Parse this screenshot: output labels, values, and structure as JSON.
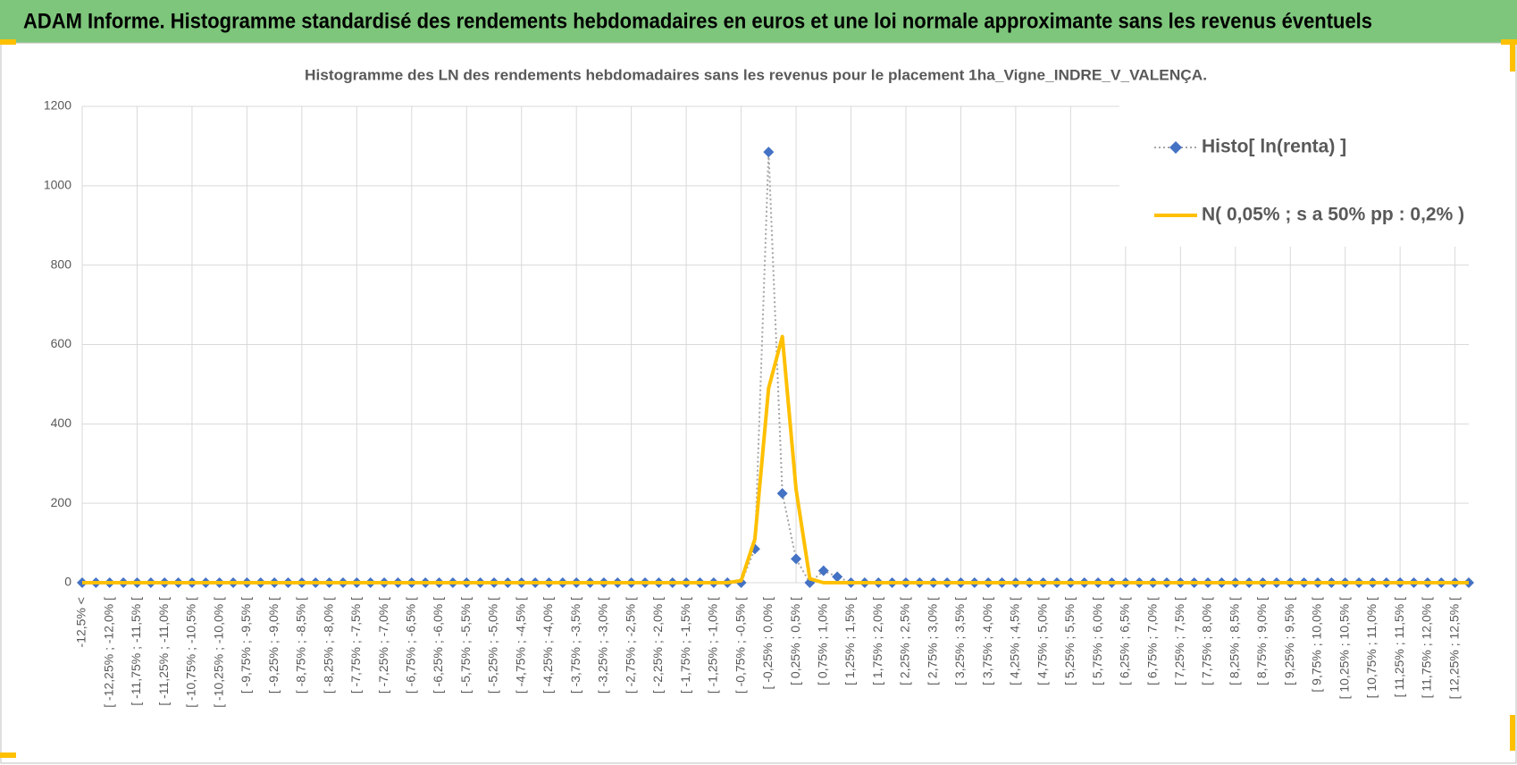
{
  "header": {
    "title": "ADAM Informe. Histogramme standardisé des rendements hebdomadaires en euros et une loi normale approximante sans les revenus éventuels"
  },
  "chart_data": {
    "type": "line",
    "title": "Histogramme des LN des rendements hebdomadaires sans les revenus pour le placement 1ha_Vigne_INDRE_V_VALENÇA.",
    "categories": [
      "-12,5% <",
      null,
      "[ -12,25% ; -12,0% [",
      null,
      "[ -11,75% ; -11,5% [",
      null,
      "[ -11,25% ; -11,0% [",
      null,
      "[ -10,75% ; -10,5% [",
      null,
      "[ -10,25% ; -10,0% [",
      null,
      "[ -9,75% ; -9,5% [",
      null,
      "[ -9,25% ; -9,0% [",
      null,
      "[ -8,75% ; -8,5% [",
      null,
      "[ -8,25% ; -8,0% [",
      null,
      "[ -7,75% ; -7,5% [",
      null,
      "[ -7,25% ; -7,0% [",
      null,
      "[ -6,75% ; -6,5% [",
      null,
      "[ -6,25% ; -6,0% [",
      null,
      "[ -5,75% ; -5,5% [",
      null,
      "[ -5,25% ; -5,0% [",
      null,
      "[ -4,75% ; -4,5% [",
      null,
      "[ -4,25% ; -4,0% [",
      null,
      "[ -3,75% ; -3,5% [",
      null,
      "[ -3,25% ; -3,0% [",
      null,
      "[ -2,75% ; -2,5% [",
      null,
      "[ -2,25% ; -2,0% [",
      null,
      "[ -1,75% ; -1,5% [",
      null,
      "[ -1,25% ; -1,0% [",
      null,
      "[ -0,75% ; -0,5% [",
      null,
      "[ -0,25% ; 0,0% [",
      null,
      "[ 0,25% ; 0,5% [",
      null,
      "[ 0,75% ; 1,0% [",
      null,
      "[ 1,25% ; 1,5% [",
      null,
      "[ 1,75% ; 2,0% [",
      null,
      "[ 2,25% ; 2,5% [",
      null,
      "[ 2,75% ; 3,0% [",
      null,
      "[ 3,25% ; 3,5% [",
      null,
      "[ 3,75% ; 4,0% [",
      null,
      "[ 4,25% ; 4,5% [",
      null,
      "[ 4,75% ; 5,0% [",
      null,
      "[ 5,25% ; 5,5% [",
      null,
      "[ 5,75% ; 6,0% [",
      null,
      "[ 6,25% ; 6,5% [",
      null,
      "[ 6,75% ; 7,0% [",
      null,
      "[ 7,25% ; 7,5% [",
      null,
      "[ 7,75% ; 8,0% [",
      null,
      "[ 8,25% ; 8,5% [",
      null,
      "[ 8,75% ; 9,0% [",
      null,
      "[ 9,25% ; 9,5% [",
      null,
      "[ 9,75% ; 10,0% [",
      null,
      "[ 10,25% ; 10,5% [",
      null,
      "[ 10,75% ; 11,0% [",
      null,
      "[ 11,25% ; 11,5% [",
      null,
      "[ 11,75% ; 12,0% [",
      null,
      "[ 12,25% ; 12,5% [",
      null
    ],
    "series": [
      {
        "name": "Histo[ ln(renta) ]",
        "color": "#4472c4",
        "line_color": "#a5a5a5",
        "values": [
          0,
          0,
          0,
          0,
          0,
          0,
          0,
          0,
          0,
          0,
          0,
          0,
          0,
          0,
          0,
          0,
          0,
          0,
          0,
          0,
          0,
          0,
          0,
          0,
          0,
          0,
          0,
          0,
          0,
          0,
          0,
          0,
          0,
          0,
          0,
          0,
          0,
          0,
          0,
          0,
          0,
          0,
          0,
          0,
          0,
          0,
          0,
          0,
          0,
          85,
          1085,
          225,
          60,
          0,
          30,
          15,
          0,
          0,
          0,
          0,
          0,
          0,
          0,
          0,
          0,
          0,
          0,
          0,
          0,
          0,
          0,
          0,
          0,
          0,
          0,
          0,
          0,
          0,
          0,
          0,
          0,
          0,
          0,
          0,
          0,
          0,
          0,
          0,
          0,
          0,
          0,
          0,
          0,
          0,
          0,
          0,
          0,
          0,
          0,
          0,
          0,
          0
        ]
      },
      {
        "name": "N( 0,05% ; s a 50% pp : 0,2% )",
        "color": "#ffc000",
        "values": [
          0,
          0,
          0,
          0,
          0,
          0,
          0,
          0,
          0,
          0,
          0,
          0,
          0,
          0,
          0,
          0,
          0,
          0,
          0,
          0,
          0,
          0,
          0,
          0,
          0,
          0,
          0,
          0,
          0,
          0,
          0,
          0,
          0,
          0,
          0,
          0,
          0,
          0,
          0,
          0,
          0,
          0,
          0,
          0,
          0,
          0,
          0,
          0,
          5,
          110,
          490,
          620,
          235,
          10,
          0,
          0,
          0,
          0,
          0,
          0,
          0,
          0,
          0,
          0,
          0,
          0,
          0,
          0,
          0,
          0,
          0,
          0,
          0,
          0,
          0,
          0,
          0,
          0,
          0,
          0,
          0,
          0,
          0,
          0,
          0,
          0,
          0,
          0,
          0,
          0,
          0,
          0,
          0,
          0,
          0,
          0,
          0,
          0,
          0,
          0,
          0,
          0
        ]
      }
    ],
    "ylim": [
      0,
      1200
    ],
    "yticks": [
      0,
      200,
      400,
      600,
      800,
      1000,
      1200
    ],
    "grid": true,
    "legend": "top-right"
  }
}
